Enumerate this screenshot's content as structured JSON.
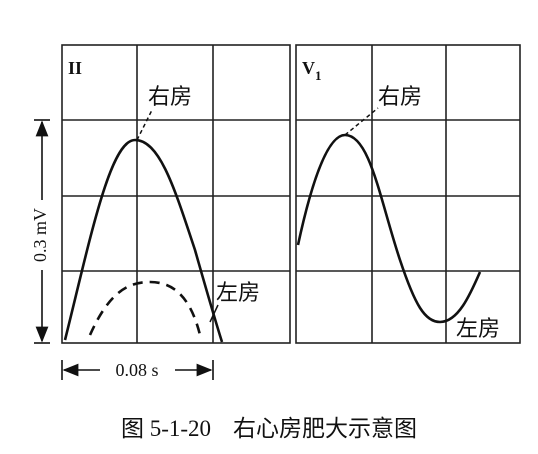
{
  "panels": [
    {
      "lead": "II",
      "right_atrium": "右房",
      "left_atrium": "左房"
    },
    {
      "lead": "V",
      "lead_sub": "1",
      "right_atrium": "右房",
      "left_atrium": "左房"
    }
  ],
  "scale": {
    "amplitude": "0.3 mV",
    "duration": "0.08 s"
  },
  "caption": {
    "figure": "图 5-1-20",
    "title": "右心房肥大示意图"
  }
}
